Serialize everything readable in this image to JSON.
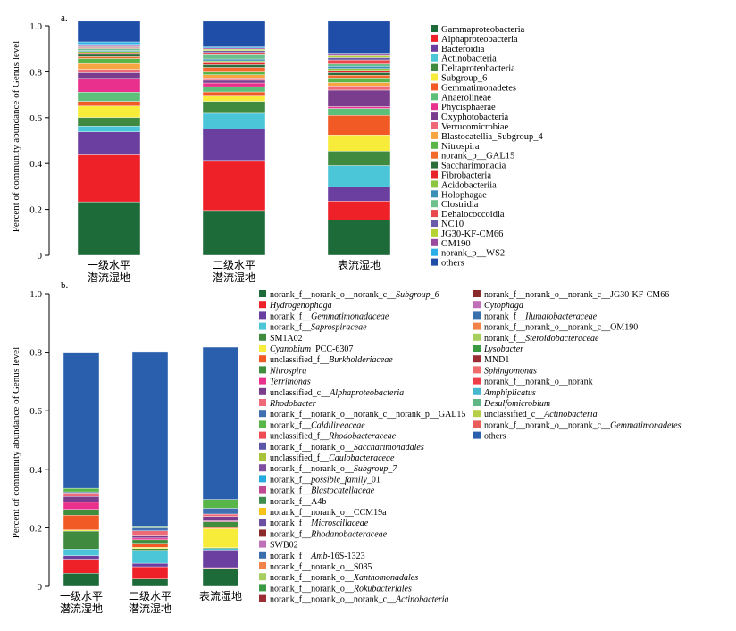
{
  "colors": {
    "p01": "#1e6b3a",
    "p02": "#ee2129",
    "p03": "#6b3fa0",
    "p04": "#4bc5d8",
    "p05": "#3f8a3f",
    "p06": "#f7ec3a",
    "p07": "#f15a24",
    "p08": "#5cc07a",
    "p09": "#e8308c",
    "p10": "#7a3d8e",
    "p11": "#ef6a79",
    "p12": "#f7a540",
    "p13": "#58b547",
    "p14": "#f26b2c",
    "p15": "#2a6e3c",
    "p16": "#e8242b",
    "p17": "#8cc63f",
    "p18": "#3a8fb5",
    "p19": "#6cc08b",
    "p20": "#e8474c",
    "p21": "#6b5ba8",
    "p22": "#b5d334",
    "p23": "#9b4aa0",
    "p24": "#2bafe6",
    "p25": "#1f4ea8",
    "q08": "#3e8e3e",
    "q12": "#3f6fb0",
    "q14": "#ef4a52",
    "q15": "#5a56a8",
    "q16": "#a8c23a",
    "q17": "#7e4f9e",
    "q18": "#26a9e0",
    "q19": "#c04a92",
    "q20": "#3f8c4f",
    "q21": "#f7c31b",
    "q22": "#6a4fa3",
    "q23": "#8b2a2a",
    "q24": "#c070b8",
    "q25": "#3a6fae",
    "q26": "#f0824a",
    "q27": "#a6cf5f",
    "q28": "#3a9a44",
    "q29": "#9b2e35",
    "q30": "#f06d6d",
    "q31": "#ee3e47",
    "q32": "#45b7ce",
    "q33": "#62b585",
    "q34": "#b6cf48",
    "q35": "#e85c5c",
    "q36": "#2a5fae"
  },
  "panel_a": {
    "letter": "a.",
    "ylabel": "Percent of community abundance of Genus level",
    "ylim": [
      0,
      1
    ],
    "yticks": [
      "0",
      "0.2",
      "0.4",
      "0.6",
      "0.8",
      "1.0"
    ],
    "categories": [
      {
        "line1": "一级水平",
        "line2": "潜流湿地"
      },
      {
        "line1": "二级水平",
        "line2": "潜流湿地"
      },
      {
        "line1": "表流湿地",
        "line2": ""
      }
    ],
    "legend": [
      {
        "label": "Gammaproteobacteria",
        "color_key": "p01"
      },
      {
        "label": "Alphaproteobacteria",
        "color_key": "p02"
      },
      {
        "label": "Bacteroidia",
        "color_key": "p03"
      },
      {
        "label": "Actinobacteria",
        "color_key": "p04"
      },
      {
        "label": "Deltaproteobacteria",
        "color_key": "p05"
      },
      {
        "label": "Subgroup_6",
        "color_key": "p06"
      },
      {
        "label": "Gemmatimonadetes",
        "color_key": "p07"
      },
      {
        "label": "Anaerolineae",
        "color_key": "p08"
      },
      {
        "label": "Phycisphaerae",
        "color_key": "p09"
      },
      {
        "label": "Oxyphotobacteria",
        "color_key": "p10"
      },
      {
        "label": "Verrucomicrobiae",
        "color_key": "p11"
      },
      {
        "label": "Blastocatellia_Subgroup_4",
        "color_key": "p12"
      },
      {
        "label": "Nitrospira",
        "color_key": "p13"
      },
      {
        "label": "norank_p__GAL15",
        "color_key": "p14"
      },
      {
        "label": "Saccharimonadia",
        "color_key": "p15"
      },
      {
        "label": "Fibrobacteria",
        "color_key": "p16"
      },
      {
        "label": "Acidobacteriia",
        "color_key": "p17"
      },
      {
        "label": "Holophagae",
        "color_key": "p18"
      },
      {
        "label": "Clostridia",
        "color_key": "p19"
      },
      {
        "label": "Dehalococcoidia",
        "color_key": "p20"
      },
      {
        "label": "NC10",
        "color_key": "p21"
      },
      {
        "label": "JG30-KF-CM66",
        "color_key": "p22"
      },
      {
        "label": "OM190",
        "color_key": "p23"
      },
      {
        "label": "norank_p__WS2",
        "color_key": "p24"
      },
      {
        "label": "others",
        "color_key": "p25"
      }
    ]
  },
  "panel_b": {
    "letter": "b.",
    "ylabel": "Percent of community abundance of Genus level",
    "ylim": [
      0,
      1
    ],
    "yticks": [
      "0",
      "0.2",
      "0.4",
      "0.6",
      "0.8",
      "1.0"
    ],
    "categories": [
      {
        "line1": "一级水平",
        "line2": "潜流湿地"
      },
      {
        "line1": "二级水平",
        "line2": "潜流湿地"
      },
      {
        "line1": "表流湿地",
        "line2": ""
      }
    ],
    "legend_col1": [
      {
        "prefix": "norank_f__norank_o__norank_c__",
        "italic": "Subgroup_6",
        "suffix": "",
        "color_key": "p01"
      },
      {
        "prefix": "",
        "italic": "Hydrogenophaga",
        "suffix": "",
        "color_key": "p02"
      },
      {
        "prefix": "norank_f__",
        "italic": "Gemmatimonadaceae",
        "suffix": "",
        "color_key": "p03"
      },
      {
        "prefix": "norank_f__",
        "italic": "Saprospiraceae",
        "suffix": "",
        "color_key": "p04"
      },
      {
        "prefix": "SM1A02",
        "italic": "",
        "suffix": "",
        "color_key": "p05"
      },
      {
        "prefix": "",
        "italic": "Cyanobium",
        "suffix": "_PCC-6307",
        "color_key": "p06"
      },
      {
        "prefix": "unclassified_f__",
        "italic": "Burkholderiaceae",
        "suffix": "",
        "color_key": "p07"
      },
      {
        "prefix": "",
        "italic": "Nitrospira",
        "suffix": "",
        "color_key": "q08"
      },
      {
        "prefix": "",
        "italic": "Terrimonas",
        "suffix": "",
        "color_key": "p09"
      },
      {
        "prefix": "unclassified_c__",
        "italic": "Alphaproteobacteria",
        "suffix": "",
        "color_key": "p10"
      },
      {
        "prefix": "",
        "italic": "Rhodobacter",
        "suffix": "",
        "color_key": "p11"
      },
      {
        "prefix": "norank_f__norank_o__norank_c__norank_p__GAL15",
        "italic": "",
        "suffix": "",
        "color_key": "q12"
      },
      {
        "prefix": "norank_f__",
        "italic": "Caldilineaceae",
        "suffix": "",
        "color_key": "p13"
      },
      {
        "prefix": "unclassified_f__",
        "italic": "Rhodobacteraceae",
        "suffix": "",
        "color_key": "q14"
      },
      {
        "prefix": "norank_f__norank_o__",
        "italic": "Saccharimonadales",
        "suffix": "",
        "color_key": "q15"
      },
      {
        "prefix": "unclassified_f__",
        "italic": "Caulobacteraceae",
        "suffix": "",
        "color_key": "q16"
      },
      {
        "prefix": "norank_f__norank_o__",
        "italic": "Subgroup_7",
        "suffix": "",
        "color_key": "q17"
      },
      {
        "prefix": "norank_f__",
        "italic": "possible_family",
        "suffix": "_01",
        "color_key": "q18"
      },
      {
        "prefix": "norank_f__",
        "italic": "Blastocatellaceae",
        "suffix": "",
        "color_key": "q19"
      },
      {
        "prefix": "norank_f__A4b",
        "italic": "",
        "suffix": "",
        "color_key": "q20"
      },
      {
        "prefix": "norank_f__norank_o__CCM19a",
        "italic": "",
        "suffix": "",
        "color_key": "q21"
      },
      {
        "prefix": "norank_f__",
        "italic": "Microscillaceae",
        "suffix": "",
        "color_key": "q22"
      },
      {
        "prefix": "norank_f__",
        "italic": "Rhodanobacteraceae",
        "suffix": "",
        "color_key": "q23"
      },
      {
        "prefix": "SWB02",
        "italic": "",
        "suffix": "",
        "color_key": "q24"
      },
      {
        "prefix": "norank_f__",
        "italic": "Amb",
        "suffix": "-16S-1323",
        "color_key": "q25"
      },
      {
        "prefix": "norank_f__norank_o__S085",
        "italic": "",
        "suffix": "",
        "color_key": "q26"
      },
      {
        "prefix": "norank_f__norank_o__",
        "italic": "Xanthomonadales",
        "suffix": "",
        "color_key": "q27"
      },
      {
        "prefix": "norank_f__norank_o__",
        "italic": "Rokubacteriales",
        "suffix": "",
        "color_key": "q28"
      },
      {
        "prefix": "norank_f__norank_o__norank_c__",
        "italic": "Actinobacteria",
        "suffix": "",
        "color_key": "q29"
      }
    ],
    "legend_col2": [
      {
        "prefix": "norank_f__norank_o__norank_c__JG30-KF-CM66",
        "italic": "",
        "suffix": "",
        "color_key": "q23"
      },
      {
        "prefix": "",
        "italic": "Cytophaga",
        "suffix": "",
        "color_key": "q24"
      },
      {
        "prefix": "norank_f__",
        "italic": "Ilumatobacteraceae",
        "suffix": "",
        "color_key": "q25"
      },
      {
        "prefix": "norank_f__norank_o__norank_c__OM190",
        "italic": "",
        "suffix": "",
        "color_key": "q26"
      },
      {
        "prefix": "norank_f__",
        "italic": "Steroidobacteraceae",
        "suffix": "",
        "color_key": "q27"
      },
      {
        "prefix": "",
        "italic": "Lysobacter",
        "suffix": "",
        "color_key": "q28"
      },
      {
        "prefix": "MND1",
        "italic": "",
        "suffix": "",
        "color_key": "q29"
      },
      {
        "prefix": "",
        "italic": "Sphingomonas",
        "suffix": "",
        "color_key": "q30"
      },
      {
        "prefix": "norank_f__norank_o__norank",
        "italic": "",
        "suffix": "",
        "color_key": "q31"
      },
      {
        "prefix": "",
        "italic": "Amphiplicatus",
        "suffix": "",
        "color_key": "q32"
      },
      {
        "prefix": "",
        "italic": "Desulfomicrobium",
        "suffix": "",
        "color_key": "q33"
      },
      {
        "prefix": "unclassified_c__",
        "italic": "Actinobacteria",
        "suffix": "",
        "color_key": "q34"
      },
      {
        "prefix": "norank_f__norank_o__norank_c__",
        "italic": "Gemmatimonadetes",
        "suffix": "",
        "color_key": "q35"
      },
      {
        "prefix": "others",
        "italic": "",
        "suffix": "",
        "color_key": "q36"
      }
    ]
  },
  "chart_data": [
    {
      "type": "bar",
      "stacked": true,
      "ylabel": "Percent of community abundance of Genus level",
      "ylim": [
        0,
        1
      ],
      "categories": [
        "一级水平潜流湿地",
        "二级水平潜流湿地",
        "表流湿地"
      ],
      "series": [
        {
          "name": "Gammaproteobacteria",
          "color_key": "p01",
          "values": [
            0.233,
            0.195,
            0.154
          ]
        },
        {
          "name": "Alphaproteobacteria",
          "color_key": "p02",
          "values": [
            0.205,
            0.218,
            0.082
          ]
        },
        {
          "name": "Bacteroidia",
          "color_key": "p03",
          "values": [
            0.1,
            0.138,
            0.063
          ]
        },
        {
          "name": "Actinobacteria",
          "color_key": "p04",
          "values": [
            0.025,
            0.068,
            0.092
          ]
        },
        {
          "name": "Deltaproteobacteria",
          "color_key": "p05",
          "values": [
            0.038,
            0.052,
            0.063
          ]
        },
        {
          "name": "Subgroup_6",
          "color_key": "p06",
          "values": [
            0.05,
            0.023,
            0.07
          ]
        },
        {
          "name": "Gemmatimonadetes",
          "color_key": "p07",
          "values": [
            0.02,
            0.018,
            0.086
          ]
        },
        {
          "name": "Anaerolineae",
          "color_key": "p08",
          "values": [
            0.04,
            0.023,
            0.03
          ]
        },
        {
          "name": "Phycisphaerae",
          "color_key": "p09",
          "values": [
            0.06,
            0.016,
            0.008
          ]
        },
        {
          "name": "Oxyphotobacteria",
          "color_key": "p10",
          "values": [
            0.025,
            0.012,
            0.072
          ]
        },
        {
          "name": "Verrucomicrobiae",
          "color_key": "p11",
          "values": [
            0.015,
            0.01,
            0.018
          ]
        },
        {
          "name": "Blastocatellia_Subgroup_4",
          "color_key": "p12",
          "values": [
            0.025,
            0.014,
            0.015
          ]
        },
        {
          "name": "Nitrospira",
          "color_key": "p13",
          "values": [
            0.022,
            0.012,
            0.02
          ]
        },
        {
          "name": "norank_p__GAL15",
          "color_key": "p14",
          "values": [
            0.008,
            0.02,
            0.012
          ]
        },
        {
          "name": "Saccharimonadia",
          "color_key": "p15",
          "values": [
            0.01,
            0.012,
            0.011
          ]
        },
        {
          "name": "Fibrobacteria",
          "color_key": "p16",
          "values": [
            0.006,
            0.008,
            0.01
          ]
        },
        {
          "name": "Acidobacteriia",
          "color_key": "p17",
          "values": [
            0.006,
            0.009,
            0.008
          ]
        },
        {
          "name": "Holophagae",
          "color_key": "p18",
          "values": [
            0.005,
            0.008,
            0.01
          ]
        },
        {
          "name": "Clostridia",
          "color_key": "p19",
          "values": [
            0.008,
            0.018,
            0.01
          ]
        },
        {
          "name": "Dehalococcoidia",
          "color_key": "p20",
          "values": [
            0.004,
            0.01,
            0.018
          ]
        },
        {
          "name": "NC10",
          "color_key": "p21",
          "values": [
            0.004,
            0.008,
            0.01
          ]
        },
        {
          "name": "JG30-KF-CM66",
          "color_key": "p22",
          "values": [
            0.006,
            0.006,
            0.008
          ]
        },
        {
          "name": "OM190",
          "color_key": "p23",
          "values": [
            0.004,
            0.005,
            0.006
          ]
        },
        {
          "name": "norank_p__WS2",
          "color_key": "p24",
          "values": [
            0.011,
            0.005,
            0.005
          ]
        },
        {
          "name": "others",
          "color_key": "p25",
          "values": [
            0.09,
            0.112,
            0.139
          ]
        }
      ]
    },
    {
      "type": "bar",
      "stacked": true,
      "ylabel": "Percent of community abundance of Genus level",
      "ylim": [
        0,
        1
      ],
      "categories": [
        "一级水平潜流湿地",
        "二级水平潜流湿地",
        "表流湿地"
      ],
      "series": [
        {
          "name": "norank_f__norank_o__norank_c__Subgroup_6",
          "color_key": "p01",
          "values": [
            0.045,
            0.025,
            0.062
          ]
        },
        {
          "name": "Hydrogenophaga",
          "color_key": "p02",
          "values": [
            0.048,
            0.042,
            0.002
          ]
        },
        {
          "name": "norank_f__Gemmatimonadaceae",
          "color_key": "p03",
          "values": [
            0.012,
            0.012,
            0.06
          ]
        },
        {
          "name": "norank_f__Saprospiraceae",
          "color_key": "p04",
          "values": [
            0.022,
            0.044,
            0.005
          ]
        },
        {
          "name": "SM1A02",
          "color_key": "p05",
          "values": [
            0.062,
            0.006,
            0.003
          ]
        },
        {
          "name": "Cyanobium_PCC-6307",
          "color_key": "p06",
          "values": [
            0.004,
            0.004,
            0.065
          ]
        },
        {
          "name": "unclassified_f__Burkholderiaceae",
          "color_key": "p07",
          "values": [
            0.05,
            0.014,
            0.004
          ]
        },
        {
          "name": "Nitrospira",
          "color_key": "q08",
          "values": [
            0.02,
            0.012,
            0.02
          ]
        },
        {
          "name": "Terrimonas",
          "color_key": "p09",
          "values": [
            0.024,
            0.006,
            0.003
          ]
        },
        {
          "name": "unclassified_c__Alphaproteobacteria",
          "color_key": "p10",
          "values": [
            0.02,
            0.01,
            0.015
          ]
        },
        {
          "name": "Rhodobacter",
          "color_key": "p11",
          "values": [
            0.012,
            0.015,
            0.008
          ]
        },
        {
          "name": "norank_f__norank_o__norank_c__norank_p__GAL15",
          "color_key": "q12",
          "values": [
            0.004,
            0.01,
            0.02
          ]
        },
        {
          "name": "norank_f__Caldilineaceae",
          "color_key": "p13",
          "values": [
            0.012,
            0.006,
            0.03
          ]
        },
        {
          "name": "others",
          "color_key": "q36",
          "values": [
            0.465,
            0.596,
            0.52
          ]
        }
      ]
    }
  ]
}
